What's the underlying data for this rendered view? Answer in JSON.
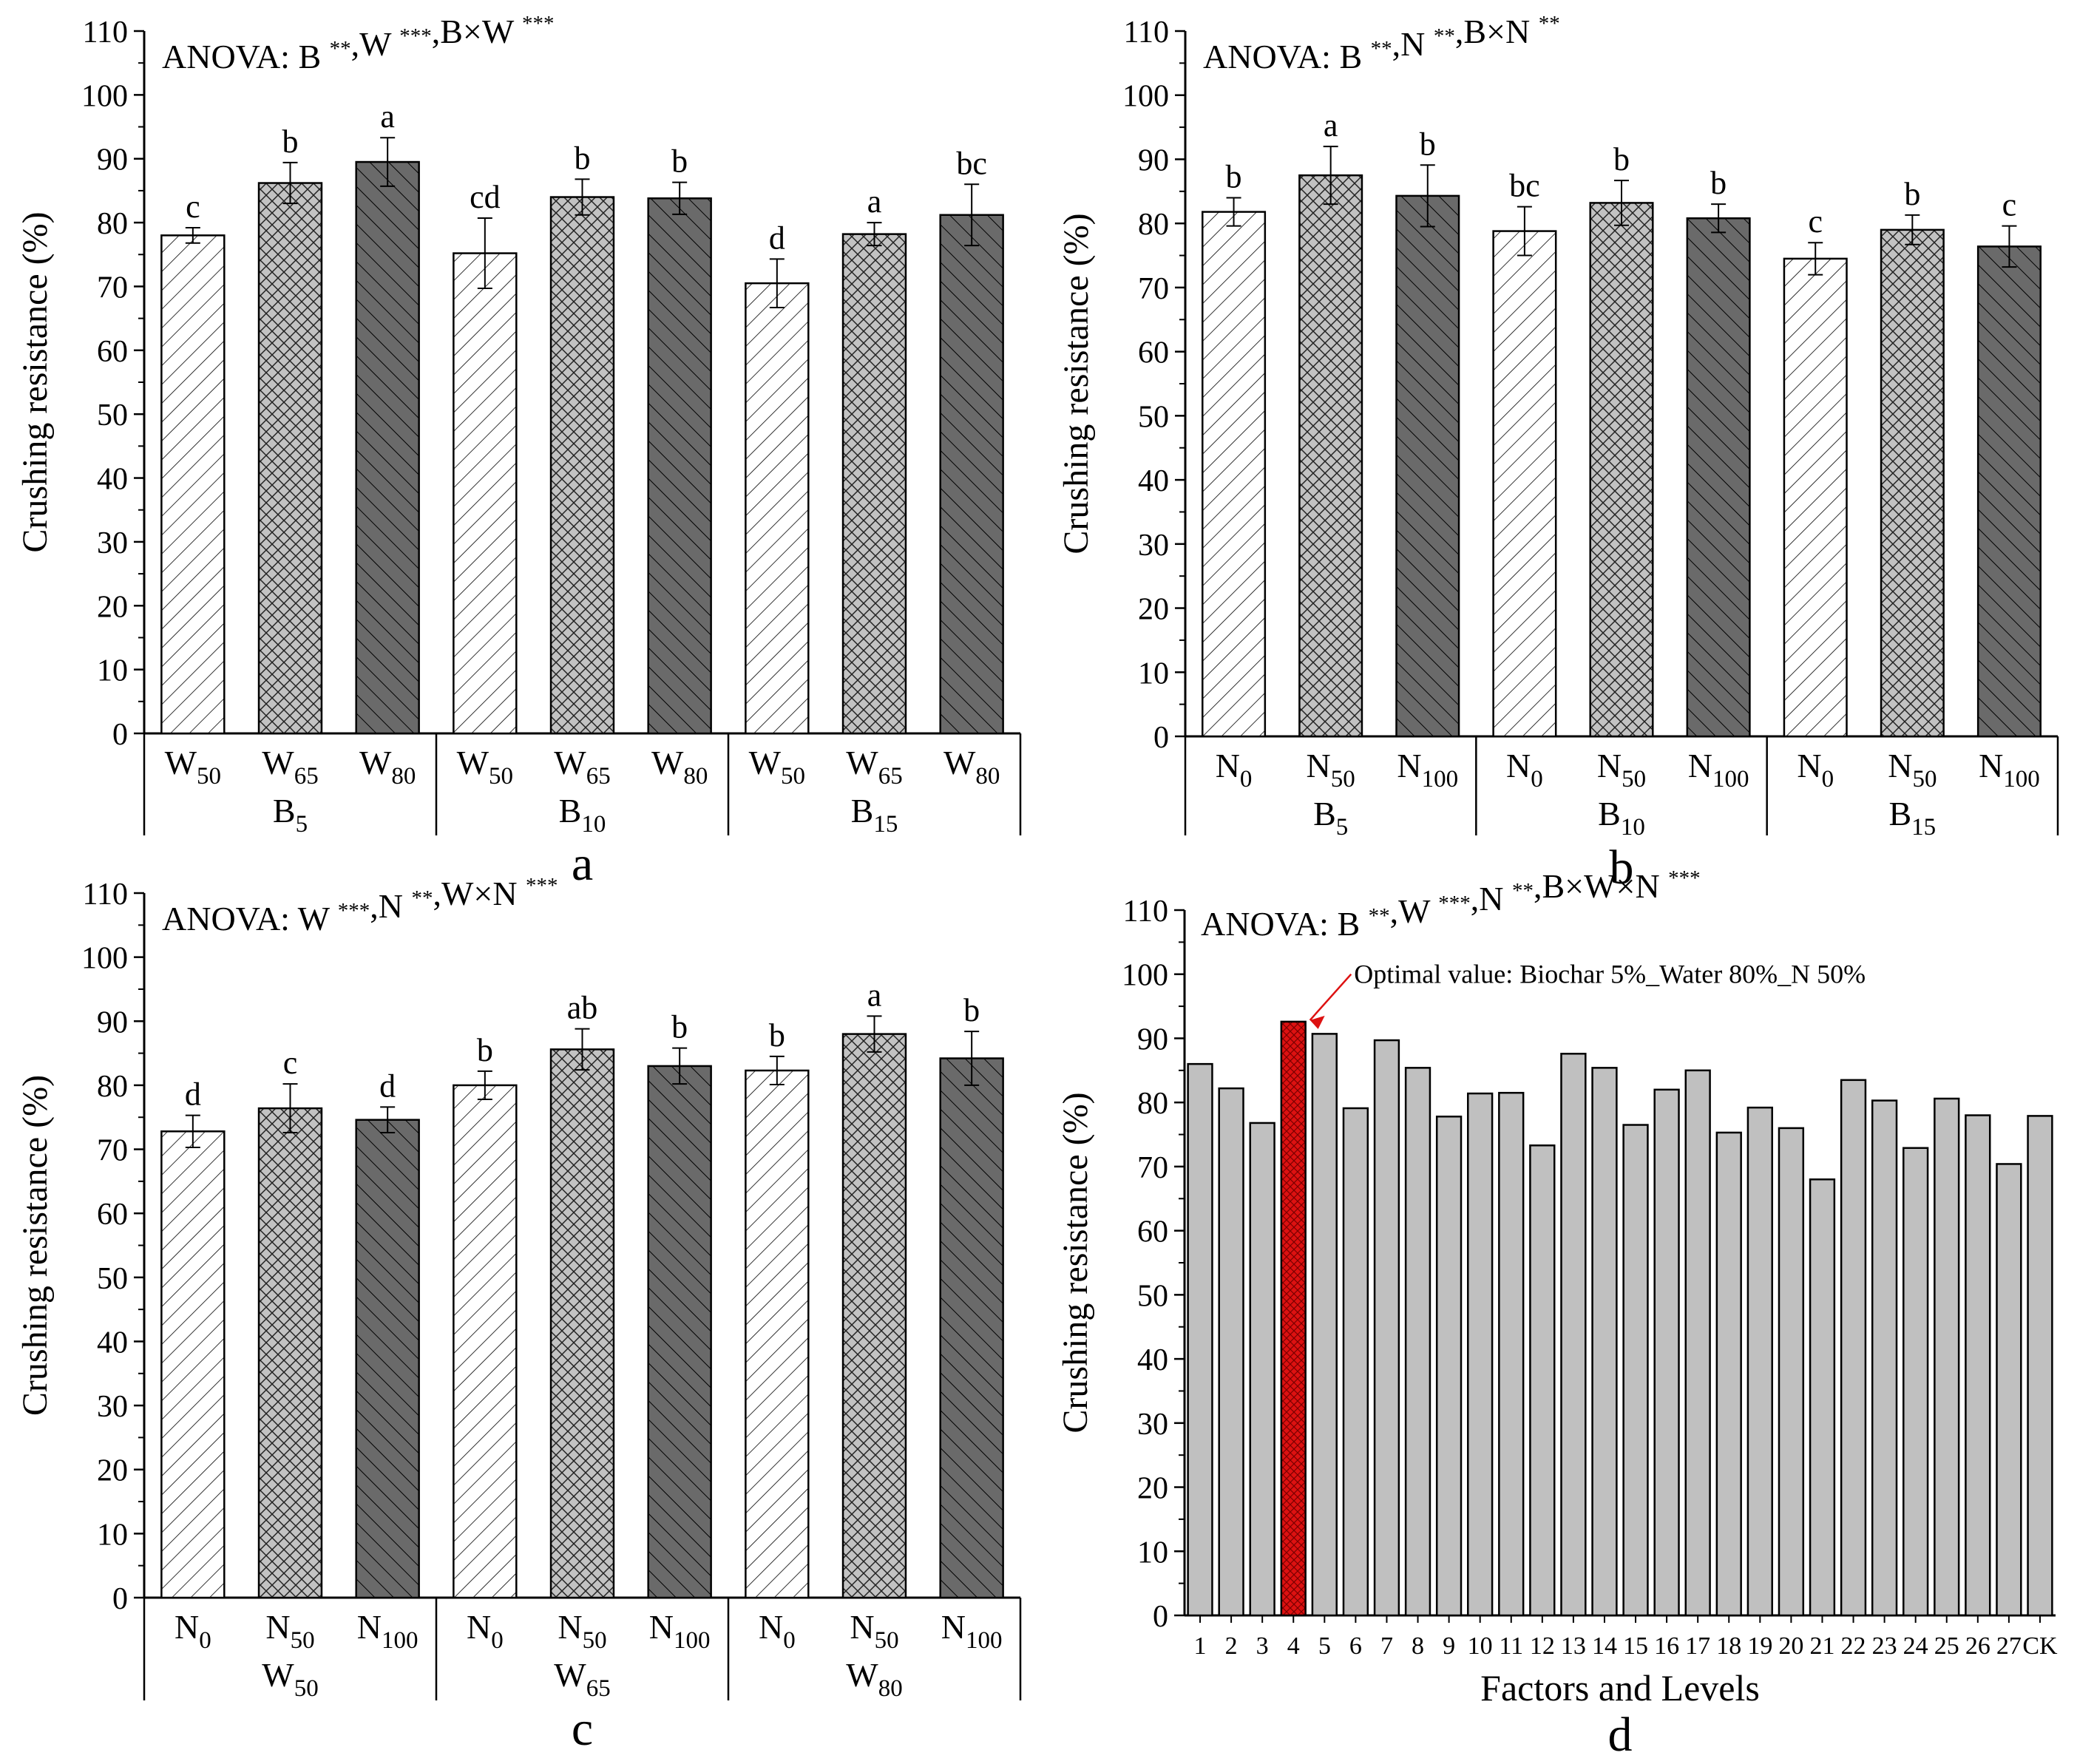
{
  "colors": {
    "w_low": "#ffffff",
    "w_mid": "#c2c2c2",
    "w_high": "#6a6a6a",
    "gray_bar": "#c0c0c0",
    "optimal_bar": "#dd1111",
    "annotation": "#dd1111"
  },
  "chart_data": [
    {
      "panel": "a",
      "type": "bar",
      "anova": {
        "prefix": "ANOVA: ",
        "terms": [
          {
            "name": "B",
            "sig": "**"
          },
          {
            "name": "W",
            "sig": "***"
          },
          {
            "name": "B×W",
            "sig": "***"
          }
        ]
      },
      "ylabel": "Crushing resistance (%)",
      "ylim": [
        0,
        110
      ],
      "yticks": [
        "0",
        "10",
        "20",
        "30",
        "40",
        "50",
        "60",
        "70",
        "80",
        "90",
        "100",
        "110"
      ],
      "groups": [
        {
          "base": "B",
          "sub": "5",
          "bars": [
            {
              "base": "W",
              "sub": "50",
              "value": 78.0,
              "err": 1.2,
              "letter": "c",
              "pattern": "low"
            },
            {
              "base": "W",
              "sub": "65",
              "value": 86.2,
              "err": 3.2,
              "letter": "b",
              "pattern": "mid"
            },
            {
              "base": "W",
              "sub": "80",
              "value": 89.5,
              "err": 3.8,
              "letter": "a",
              "pattern": "high"
            }
          ]
        },
        {
          "base": "B",
          "sub": "10",
          "bars": [
            {
              "base": "W",
              "sub": "50",
              "value": 75.2,
              "err": 5.5,
              "letter": "cd",
              "pattern": "low"
            },
            {
              "base": "W",
              "sub": "65",
              "value": 84.0,
              "err": 2.8,
              "letter": "b",
              "pattern": "mid"
            },
            {
              "base": "W",
              "sub": "80",
              "value": 83.8,
              "err": 2.5,
              "letter": "b",
              "pattern": "high"
            }
          ]
        },
        {
          "base": "B",
          "sub": "15",
          "bars": [
            {
              "base": "W",
              "sub": "50",
              "value": 70.5,
              "err": 3.8,
              "letter": "d",
              "pattern": "low"
            },
            {
              "base": "W",
              "sub": "65",
              "value": 78.2,
              "err": 1.8,
              "letter": "a",
              "pattern": "mid"
            },
            {
              "base": "W",
              "sub": "80",
              "value": 81.2,
              "err": 4.8,
              "letter": "bc",
              "pattern": "high"
            }
          ]
        }
      ]
    },
    {
      "panel": "b",
      "type": "bar",
      "anova": {
        "prefix": "ANOVA: ",
        "terms": [
          {
            "name": "B",
            "sig": "**"
          },
          {
            "name": "N",
            "sig": "**"
          },
          {
            "name": "B×N",
            "sig": "**"
          }
        ]
      },
      "ylabel": "Crushing resistance (%)",
      "ylim": [
        0,
        110
      ],
      "yticks": [
        "0",
        "10",
        "20",
        "30",
        "40",
        "50",
        "60",
        "70",
        "80",
        "90",
        "100",
        "110"
      ],
      "groups": [
        {
          "base": "B",
          "sub": "5",
          "bars": [
            {
              "base": "N",
              "sub": "0",
              "value": 81.8,
              "err": 2.2,
              "letter": "b",
              "pattern": "low"
            },
            {
              "base": "N",
              "sub": "50",
              "value": 87.5,
              "err": 4.5,
              "letter": "a",
              "pattern": "mid"
            },
            {
              "base": "N",
              "sub": "100",
              "value": 84.3,
              "err": 4.8,
              "letter": "b",
              "pattern": "high"
            }
          ]
        },
        {
          "base": "B",
          "sub": "10",
          "bars": [
            {
              "base": "N",
              "sub": "0",
              "value": 78.8,
              "err": 3.8,
              "letter": "bc",
              "pattern": "low"
            },
            {
              "base": "N",
              "sub": "50",
              "value": 83.2,
              "err": 3.5,
              "letter": "b",
              "pattern": "mid"
            },
            {
              "base": "N",
              "sub": "100",
              "value": 80.8,
              "err": 2.2,
              "letter": "b",
              "pattern": "high"
            }
          ]
        },
        {
          "base": "B",
          "sub": "15",
          "bars": [
            {
              "base": "N",
              "sub": "0",
              "value": 74.5,
              "err": 2.5,
              "letter": "c",
              "pattern": "low"
            },
            {
              "base": "N",
              "sub": "50",
              "value": 79.0,
              "err": 2.3,
              "letter": "b",
              "pattern": "mid"
            },
            {
              "base": "N",
              "sub": "100",
              "value": 76.4,
              "err": 3.2,
              "letter": "c",
              "pattern": "high"
            }
          ]
        }
      ]
    },
    {
      "panel": "c",
      "type": "bar",
      "anova": {
        "prefix": "ANOVA: ",
        "terms": [
          {
            "name": "W",
            "sig": "***"
          },
          {
            "name": "N",
            "sig": "**"
          },
          {
            "name": "W×N",
            "sig": "***"
          }
        ]
      },
      "ylabel": "Crushing resistance (%)",
      "ylim": [
        0,
        110
      ],
      "yticks": [
        "0",
        "10",
        "20",
        "30",
        "40",
        "50",
        "60",
        "70",
        "80",
        "90",
        "100",
        "110"
      ],
      "groups": [
        {
          "base": "W",
          "sub": "50",
          "bars": [
            {
              "base": "N",
              "sub": "0",
              "value": 72.8,
              "err": 2.5,
              "letter": "d",
              "pattern": "low"
            },
            {
              "base": "N",
              "sub": "50",
              "value": 76.4,
              "err": 3.8,
              "letter": "c",
              "pattern": "mid"
            },
            {
              "base": "N",
              "sub": "100",
              "value": 74.6,
              "err": 2.0,
              "letter": "d",
              "pattern": "high"
            }
          ]
        },
        {
          "base": "W",
          "sub": "65",
          "bars": [
            {
              "base": "N",
              "sub": "0",
              "value": 80.0,
              "err": 2.2,
              "letter": "b",
              "pattern": "low"
            },
            {
              "base": "N",
              "sub": "50",
              "value": 85.6,
              "err": 3.2,
              "letter": "ab",
              "pattern": "mid"
            },
            {
              "base": "N",
              "sub": "100",
              "value": 83.0,
              "err": 2.8,
              "letter": "b",
              "pattern": "high"
            }
          ]
        },
        {
          "base": "W",
          "sub": "80",
          "bars": [
            {
              "base": "N",
              "sub": "0",
              "value": 82.3,
              "err": 2.2,
              "letter": "b",
              "pattern": "low"
            },
            {
              "base": "N",
              "sub": "50",
              "value": 88.0,
              "err": 2.8,
              "letter": "a",
              "pattern": "mid"
            },
            {
              "base": "N",
              "sub": "100",
              "value": 84.2,
              "err": 4.2,
              "letter": "b",
              "pattern": "high"
            }
          ]
        }
      ]
    },
    {
      "panel": "d",
      "type": "bar",
      "anova": {
        "prefix": "ANOVA: ",
        "terms": [
          {
            "name": "B",
            "sig": "**"
          },
          {
            "name": "W",
            "sig": "***"
          },
          {
            "name": "N",
            "sig": "**"
          },
          {
            "name": "B×W×N",
            "sig": "***"
          }
        ]
      },
      "ylabel": "Crushing resistance (%)",
      "xlabel": "Factors and Levels",
      "ylim": [
        0,
        110
      ],
      "yticks": [
        "0",
        "10",
        "20",
        "30",
        "40",
        "50",
        "60",
        "70",
        "80",
        "90",
        "100",
        "110"
      ],
      "categories": [
        "1",
        "2",
        "3",
        "4",
        "5",
        "6",
        "7",
        "8",
        "9",
        "10",
        "11",
        "12",
        "13",
        "14",
        "15",
        "16",
        "17",
        "18",
        "19",
        "20",
        "21",
        "22",
        "23",
        "24",
        "25",
        "26",
        "27",
        "CK"
      ],
      "values": [
        86.0,
        82.2,
        76.8,
        92.6,
        90.7,
        79.1,
        89.7,
        85.4,
        77.8,
        81.4,
        81.5,
        73.3,
        87.6,
        85.4,
        76.5,
        82.0,
        85.0,
        75.3,
        79.2,
        76.0,
        68.0,
        83.5,
        80.3,
        72.9,
        80.6,
        78.0,
        70.4,
        77.9
      ],
      "highlight_index": 3,
      "annotation": "Optimal value: Biochar 5%_Water 80%_N 50%"
    }
  ],
  "panel_labels": [
    "a",
    "b",
    "c",
    "d"
  ]
}
